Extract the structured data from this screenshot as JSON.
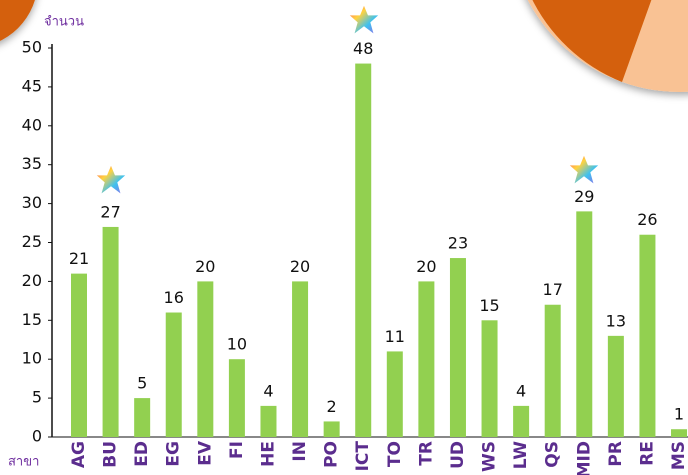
{
  "chart_data": {
    "type": "bar",
    "y_axis_label": "จำนวน",
    "x_axis_label": "สาขา",
    "categories": [
      "AG",
      "BU",
      "ED",
      "EG",
      "EV",
      "FI",
      "HE",
      "IN",
      "PO",
      "ICT",
      "TO",
      "TR",
      "UD",
      "WS",
      "LW",
      "QS",
      "MID",
      "PR",
      "RE",
      "MS"
    ],
    "values": [
      21,
      27,
      5,
      16,
      20,
      10,
      4,
      20,
      2,
      48,
      11,
      20,
      23,
      15,
      4,
      17,
      29,
      13,
      26,
      1
    ],
    "color": "#92d050",
    "ylim": [
      0,
      50
    ],
    "yticks": [
      0,
      5,
      10,
      15,
      20,
      25,
      30,
      35,
      40,
      45,
      50
    ],
    "grid": false
  }
}
